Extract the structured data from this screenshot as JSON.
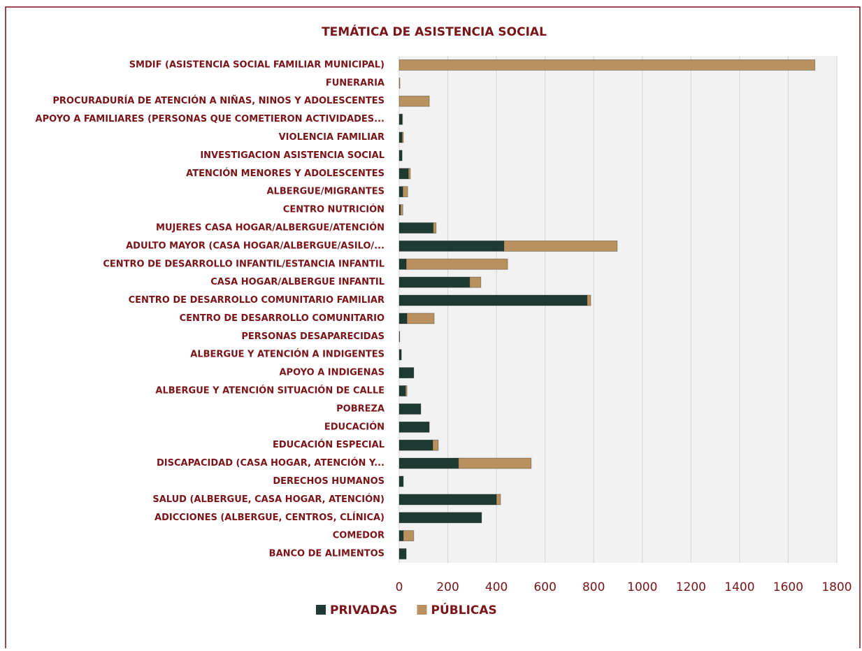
{
  "chart_data": {
    "type": "stacked_bar_horizontal",
    "title": "TEMÁTICA DE ASISTENCIA SOCIAL",
    "categories": [
      "SMDIF (ASISTENCIA SOCIAL FAMILIAR MUNICIPAL)",
      "FUNERARIA",
      "PROCURADURÍA DE ATENCIÓN A NIÑAS, NINOS Y ADOLESCENTES",
      "APOYO A FAMILIARES (PERSONAS QUE COMETIERON ACTIVIDADES...",
      "VIOLENCIA FAMILIAR",
      "INVESTIGACION ASISTENCIA  SOCIAL",
      "ATENCIÓN MENORES Y ADOLESCENTES",
      "ALBERGUE/MIGRANTES",
      "CENTRO NUTRICIÓN",
      "MUJERES CASA HOGAR/ALBERGUE/ATENCIÓN",
      "ADULTO MAYOR (CASA HOGAR/ALBERGUE/ASILO/...",
      "CENTRO DE DESARROLLO INFANTIL/ESTANCIA INFANTIL",
      "CASA HOGAR/ALBERGUE INFANTIL",
      "CENTRO DE DESARROLLO COMUNITARIO FAMILIAR",
      "CENTRO DE DESARROLLO COMUNITARIO",
      "PERSONAS DESAPARECIDAS",
      "ALBERGUE Y ATENCIÓN A INDIGENTES",
      "APOYO A INDIGENAS",
      "ALBERGUE Y ATENCIÓN SITUACIÓN DE CALLE",
      "POBREZA",
      "EDUCACIÓN",
      "EDUCACIÓN ESPECIAL",
      "DISCAPACIDAD (CASA HOGAR, ATENCIÓN Y...",
      "DERECHOS HUMANOS",
      "SALUD (ALBERGUE, CASA HOGAR, ATENCIÓN)",
      "ADICCIONES (ALBERGUE, CENTROS, CLÍNICA)",
      "COMEDOR",
      "BANCO DE ALIMENTOS"
    ],
    "series": [
      {
        "name": "PRIVADAS",
        "color": "#1e3b33",
        "values": [
          0,
          0,
          0,
          12,
          12,
          12,
          38,
          15,
          5,
          140,
          431,
          29,
          290,
          773,
          32,
          2,
          9,
          60,
          26,
          89,
          124,
          138,
          244,
          17,
          400,
          339,
          17,
          29
        ]
      },
      {
        "name": "PÚBLICAS",
        "color": "#b8915e",
        "values": [
          1710,
          3,
          124,
          2,
          5,
          0,
          8,
          20,
          10,
          12,
          466,
          417,
          46,
          15,
          112,
          0,
          0,
          0,
          6,
          0,
          0,
          23,
          299,
          0,
          17,
          0,
          43,
          0
        ]
      }
    ],
    "xlim": [
      0,
      1800
    ],
    "xticks": [
      0,
      200,
      400,
      600,
      800,
      1000,
      1200,
      1400,
      1600,
      1800
    ],
    "grid": true,
    "legend": "bottom"
  }
}
